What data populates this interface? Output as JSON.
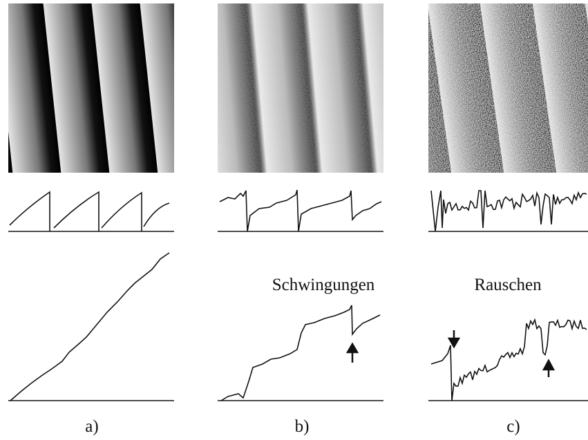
{
  "annotations": {
    "b": "Schwingungen",
    "c": "Rauschen"
  },
  "panel_labels": [
    "a)",
    "b)",
    "c)"
  ]
}
